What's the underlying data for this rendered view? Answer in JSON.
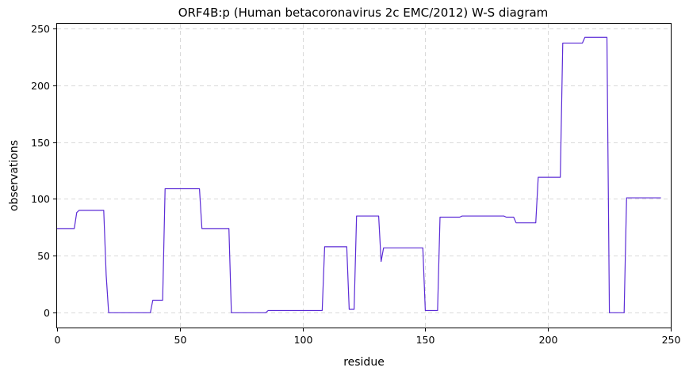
{
  "chart_data": {
    "type": "line",
    "title": "ORF4B:p (Human betacoronavirus 2c EMC/2012) W-S diagram",
    "xlabel": "residue",
    "ylabel": "observations",
    "xlim": [
      0,
      250
    ],
    "ylim": [
      -13,
      254
    ],
    "xticks": [
      0,
      50,
      100,
      150,
      200,
      250
    ],
    "yticks": [
      0,
      50,
      100,
      150,
      200,
      250
    ],
    "grid": true,
    "color": "#5b2bd6",
    "series": [
      {
        "name": "",
        "x": [
          0,
          7,
          8,
          9,
          19,
          20,
          21,
          38,
          39,
          43,
          44,
          58,
          59,
          70,
          71,
          85,
          86,
          108,
          109,
          118,
          119,
          121,
          122,
          131,
          132,
          133,
          149,
          150,
          155,
          156,
          164,
          165,
          182,
          183,
          186,
          187,
          195,
          196,
          205,
          206,
          214,
          215,
          224,
          225,
          231,
          232,
          246
        ],
        "y": [
          74,
          74,
          88,
          90,
          90,
          33,
          0,
          0,
          11,
          11,
          109,
          109,
          74,
          74,
          0,
          0,
          2,
          2,
          58,
          58,
          3,
          3,
          85,
          85,
          45,
          57,
          57,
          2,
          2,
          84,
          84,
          85,
          85,
          84,
          84,
          79,
          79,
          119,
          119,
          237,
          237,
          242,
          242,
          0,
          0,
          101,
          101
        ]
      }
    ]
  }
}
